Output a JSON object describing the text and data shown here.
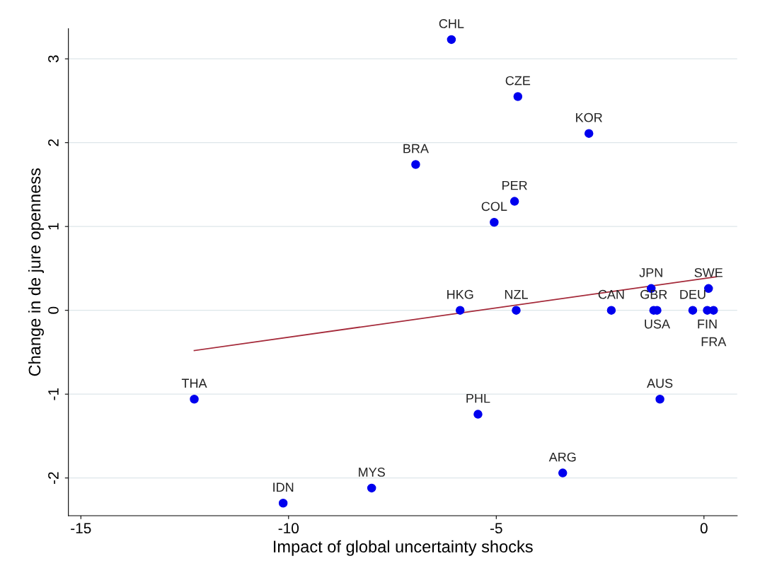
{
  "chart_data": {
    "type": "scatter",
    "xlabel": "Impact of global uncertainty shocks",
    "ylabel": "Change in de jure openness",
    "xlim": [
      -15.3,
      0.8
    ],
    "ylim": [
      -2.45,
      3.36
    ],
    "xticks": [
      -15,
      -10,
      -5,
      0
    ],
    "yticks": [
      -2,
      -1,
      0,
      1,
      2,
      3
    ],
    "grid": "y",
    "marker": "circle",
    "series": [
      {
        "color": "#0000ee",
        "x": [
          -6.08,
          -4.48,
          -2.77,
          -6.94,
          -4.56,
          -5.05,
          -5.87,
          -4.52,
          -2.23,
          -1.27,
          -1.21,
          -1.13,
          -0.27,
          0.11,
          0.08,
          0.23,
          -12.27,
          -5.44,
          -1.06,
          -3.4,
          -8.0,
          -10.13
        ],
        "values": [
          3.23,
          2.55,
          2.11,
          1.74,
          1.3,
          1.05,
          0,
          0,
          0,
          0.26,
          0,
          0,
          0,
          0.26,
          0,
          0,
          -1.06,
          -1.24,
          -1.06,
          -1.94,
          -2.12,
          -2.3
        ],
        "value_labels": [
          "CHL",
          "CZE",
          "KOR",
          "BRA",
          "PER",
          "COL",
          "HKG",
          "NZL",
          "CAN",
          "JPN",
          "GBR",
          "USA",
          "DEU",
          "SWE",
          "FIN",
          "FRA",
          "THA",
          "PHL",
          "AUS",
          "ARG",
          "MYS",
          "IDN"
        ]
      },
      {
        "type": "line",
        "color": "#a52a3a",
        "x": [
          -12.27,
          0.3
        ],
        "values": [
          -0.48,
          0.4
        ],
        "marker": "none",
        "line_style": "solid"
      }
    ]
  }
}
